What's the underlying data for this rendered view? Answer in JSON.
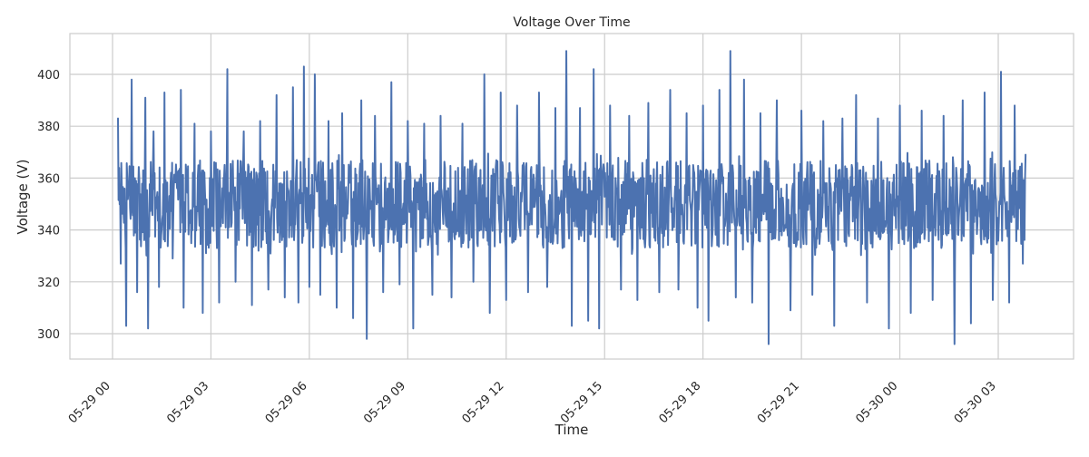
{
  "chart_data": {
    "type": "line",
    "title": "Voltage Over Time",
    "xlabel": "Time",
    "ylabel": "Voltage (V)",
    "x_range": [
      "2024-05-29T00:00",
      "2024-05-30T03:50"
    ],
    "ylim": [
      290,
      415
    ],
    "x_ticks": [
      {
        "value": "2024-05-29T00:00",
        "label": "05-29 00"
      },
      {
        "value": "2024-05-29T03:00",
        "label": "05-29 03"
      },
      {
        "value": "2024-05-29T06:00",
        "label": "05-29 06"
      },
      {
        "value": "2024-05-29T09:00",
        "label": "05-29 09"
      },
      {
        "value": "2024-05-29T12:00",
        "label": "05-29 12"
      },
      {
        "value": "2024-05-29T15:00",
        "label": "05-29 15"
      },
      {
        "value": "2024-05-29T18:00",
        "label": "05-29 18"
      },
      {
        "value": "2024-05-29T21:00",
        "label": "05-29 21"
      },
      {
        "value": "2024-05-30T00:00",
        "label": "05-30 00"
      },
      {
        "value": "2024-05-30T03:00",
        "label": "05-30 03"
      }
    ],
    "y_ticks": [
      300,
      320,
      340,
      360,
      380,
      400
    ],
    "grid": true,
    "legend": "none",
    "series": [
      {
        "color": "#4c72b0",
        "summary": {
          "start": "2024-05-29T00:10",
          "end": "2024-05-30T03:50",
          "typical_band": [
            330,
            370
          ],
          "center": 350
        },
        "points": [
          [
            "2024-05-29T00:10",
            383
          ],
          [
            "2024-05-29T00:15",
            327
          ],
          [
            "2024-05-29T00:25",
            303
          ],
          [
            "2024-05-29T00:35",
            398
          ],
          [
            "2024-05-29T00:45",
            316
          ],
          [
            "2024-05-29T01:00",
            391
          ],
          [
            "2024-05-29T01:05",
            302
          ],
          [
            "2024-05-29T01:15",
            378
          ],
          [
            "2024-05-29T01:25",
            318
          ],
          [
            "2024-05-29T01:35",
            393
          ],
          [
            "2024-05-29T01:50",
            329
          ],
          [
            "2024-05-29T02:05",
            394
          ],
          [
            "2024-05-29T02:10",
            310
          ],
          [
            "2024-05-29T02:30",
            381
          ],
          [
            "2024-05-29T02:45",
            308
          ],
          [
            "2024-05-29T03:00",
            378
          ],
          [
            "2024-05-29T03:15",
            312
          ],
          [
            "2024-05-29T03:30",
            402
          ],
          [
            "2024-05-29T03:45",
            320
          ],
          [
            "2024-05-29T04:00",
            378
          ],
          [
            "2024-05-29T04:15",
            311
          ],
          [
            "2024-05-29T04:30",
            382
          ],
          [
            "2024-05-29T04:45",
            317
          ],
          [
            "2024-05-29T05:00",
            392
          ],
          [
            "2024-05-29T05:15",
            314
          ],
          [
            "2024-05-29T05:30",
            395
          ],
          [
            "2024-05-29T05:40",
            312
          ],
          [
            "2024-05-29T05:50",
            403
          ],
          [
            "2024-05-29T06:00",
            318
          ],
          [
            "2024-05-29T06:10",
            400
          ],
          [
            "2024-05-29T06:20",
            315
          ],
          [
            "2024-05-29T06:35",
            382
          ],
          [
            "2024-05-29T06:50",
            310
          ],
          [
            "2024-05-29T07:00",
            385
          ],
          [
            "2024-05-29T07:20",
            306
          ],
          [
            "2024-05-29T07:35",
            390
          ],
          [
            "2024-05-29T07:45",
            298
          ],
          [
            "2024-05-29T08:00",
            384
          ],
          [
            "2024-05-29T08:15",
            316
          ],
          [
            "2024-05-29T08:30",
            397
          ],
          [
            "2024-05-29T08:45",
            319
          ],
          [
            "2024-05-29T09:00",
            382
          ],
          [
            "2024-05-29T09:10",
            302
          ],
          [
            "2024-05-29T09:30",
            381
          ],
          [
            "2024-05-29T09:45",
            315
          ],
          [
            "2024-05-29T10:00",
            384
          ],
          [
            "2024-05-29T10:20",
            314
          ],
          [
            "2024-05-29T10:40",
            381
          ],
          [
            "2024-05-29T11:00",
            320
          ],
          [
            "2024-05-29T11:20",
            400
          ],
          [
            "2024-05-29T11:30",
            308
          ],
          [
            "2024-05-29T11:50",
            393
          ],
          [
            "2024-05-29T12:00",
            313
          ],
          [
            "2024-05-29T12:20",
            388
          ],
          [
            "2024-05-29T12:40",
            316
          ],
          [
            "2024-05-29T13:00",
            393
          ],
          [
            "2024-05-29T13:15",
            318
          ],
          [
            "2024-05-29T13:30",
            387
          ],
          [
            "2024-05-29T13:50",
            409
          ],
          [
            "2024-05-29T14:00",
            303
          ],
          [
            "2024-05-29T14:15",
            387
          ],
          [
            "2024-05-29T14:30",
            305
          ],
          [
            "2024-05-29T14:40",
            402
          ],
          [
            "2024-05-29T14:50",
            302
          ],
          [
            "2024-05-29T15:10",
            388
          ],
          [
            "2024-05-29T15:30",
            317
          ],
          [
            "2024-05-29T15:45",
            384
          ],
          [
            "2024-05-29T16:00",
            313
          ],
          [
            "2024-05-29T16:20",
            389
          ],
          [
            "2024-05-29T16:40",
            316
          ],
          [
            "2024-05-29T17:00",
            394
          ],
          [
            "2024-05-29T17:15",
            317
          ],
          [
            "2024-05-29T17:30",
            385
          ],
          [
            "2024-05-29T17:50",
            310
          ],
          [
            "2024-05-29T18:00",
            388
          ],
          [
            "2024-05-29T18:10",
            305
          ],
          [
            "2024-05-29T18:30",
            394
          ],
          [
            "2024-05-29T18:50",
            409
          ],
          [
            "2024-05-29T19:00",
            314
          ],
          [
            "2024-05-29T19:15",
            398
          ],
          [
            "2024-05-29T19:30",
            312
          ],
          [
            "2024-05-29T19:45",
            385
          ],
          [
            "2024-05-29T20:00",
            296
          ],
          [
            "2024-05-29T20:15",
            390
          ],
          [
            "2024-05-29T20:40",
            309
          ],
          [
            "2024-05-29T21:00",
            386
          ],
          [
            "2024-05-29T21:20",
            315
          ],
          [
            "2024-05-29T21:40",
            382
          ],
          [
            "2024-05-29T22:00",
            303
          ],
          [
            "2024-05-29T22:15",
            383
          ],
          [
            "2024-05-29T22:40",
            392
          ],
          [
            "2024-05-29T23:00",
            312
          ],
          [
            "2024-05-29T23:20",
            383
          ],
          [
            "2024-05-29T23:40",
            302
          ],
          [
            "2024-05-30T00:00",
            388
          ],
          [
            "2024-05-30T00:20",
            308
          ],
          [
            "2024-05-30T00:40",
            386
          ],
          [
            "2024-05-30T01:00",
            313
          ],
          [
            "2024-05-30T01:20",
            384
          ],
          [
            "2024-05-30T01:40",
            296
          ],
          [
            "2024-05-30T01:55",
            390
          ],
          [
            "2024-05-30T02:10",
            304
          ],
          [
            "2024-05-30T02:35",
            393
          ],
          [
            "2024-05-30T02:50",
            313
          ],
          [
            "2024-05-30T03:05",
            401
          ],
          [
            "2024-05-30T03:20",
            312
          ],
          [
            "2024-05-30T03:30",
            388
          ],
          [
            "2024-05-30T03:45",
            327
          ],
          [
            "2024-05-30T03:50",
            369
          ]
        ]
      }
    ]
  }
}
